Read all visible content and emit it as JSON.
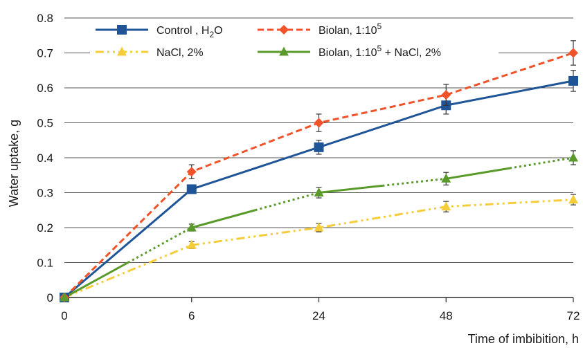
{
  "chart_data": {
    "type": "line",
    "x_ticks": [
      "0",
      "6",
      "24",
      "48",
      "72"
    ],
    "xlabel": "Time of imbibition, h",
    "ylabel": "Water uptake, g",
    "ylim": [
      0,
      0.8
    ],
    "y_ticks": [
      "0",
      "0.1",
      "0.2",
      "0.3",
      "0.4",
      "0.5",
      "0.6",
      "0.7",
      "0.8"
    ],
    "grid": "horizontal",
    "legend_position": "top",
    "series": [
      {
        "name": "Control , H2O",
        "name_parts": [
          "Control , H",
          "2",
          "O"
        ],
        "name_style": "sub",
        "color": "#1f5597",
        "marker": "square",
        "dash": "solid",
        "values": [
          0,
          0.31,
          0.43,
          0.55,
          0.62
        ],
        "errors": [
          0,
          0.012,
          0.02,
          0.025,
          0.03
        ]
      },
      {
        "name": "Biolan, 1:105",
        "name_parts": [
          "Biolan, 1:10",
          "5",
          ""
        ],
        "name_style": "sup",
        "color": "#f0532a",
        "marker": "diamond",
        "dash": "dash",
        "values": [
          0,
          0.36,
          0.5,
          0.58,
          0.7
        ],
        "errors": [
          0,
          0.02,
          0.025,
          0.03,
          0.035
        ]
      },
      {
        "name": "NaCl, 2%",
        "name_parts": [
          "NaCl, 2%",
          "",
          ""
        ],
        "name_style": "none",
        "color": "#f5cd3a",
        "marker": "triangle",
        "dash": "dashdotdot",
        "values": [
          0,
          0.15,
          0.2,
          0.26,
          0.28
        ],
        "errors": [
          0,
          0.01,
          0.012,
          0.015,
          0.015
        ]
      },
      {
        "name": "Biolan, 1:105 + NaCl, 2%",
        "name_parts": [
          "Biolan, 1:10",
          "5",
          " + NaCl, 2%"
        ],
        "name_style": "sup",
        "color": "#5a9a2a",
        "marker": "triangle",
        "dash": "mixed",
        "values": [
          0,
          0.2,
          0.3,
          0.34,
          0.4
        ],
        "errors": [
          0,
          0.01,
          0.015,
          0.018,
          0.02
        ]
      }
    ]
  }
}
